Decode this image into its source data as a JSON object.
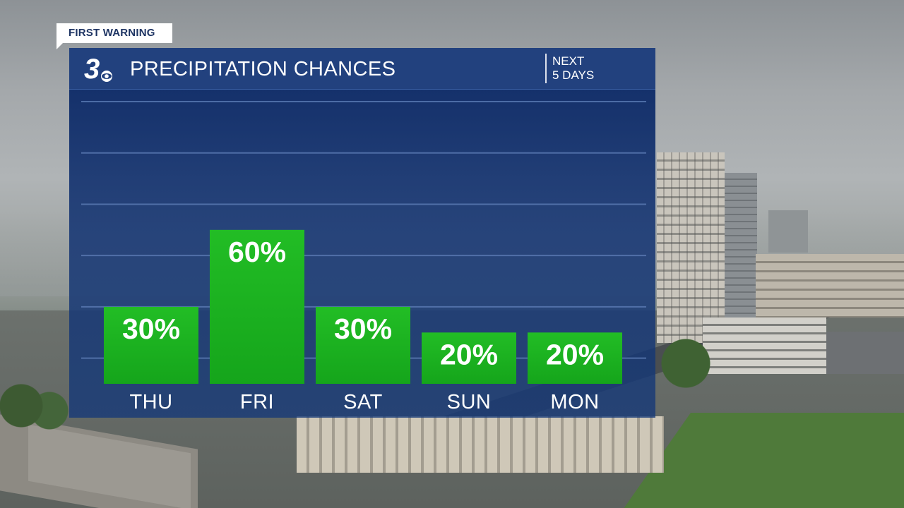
{
  "header": {
    "tag": "FIRST WARNING",
    "title": "PRECIPITATION CHANCES",
    "subtitle_line1": "NEXT",
    "subtitle_line2": "5 DAYS"
  },
  "logo": {
    "name": "wtvr-3-logo"
  },
  "colors": {
    "bar": "#15a51b",
    "bar_highlight": "#22bd25",
    "panel": "#163a7a",
    "title_bar": "#22417e",
    "gridline": "#5f7fb8",
    "text": "#ffffff"
  },
  "chart_data": {
    "type": "bar",
    "title": "PRECIPITATION CHANCES",
    "categories": [
      "THU",
      "FRI",
      "SAT",
      "SUN",
      "MON"
    ],
    "values": [
      30,
      60,
      30,
      20,
      20
    ],
    "data_labels": [
      "30%",
      "60%",
      "30%",
      "20%",
      "20%"
    ],
    "unit": "%",
    "ylim": [
      0,
      110
    ],
    "grid": true,
    "legend": "none"
  }
}
